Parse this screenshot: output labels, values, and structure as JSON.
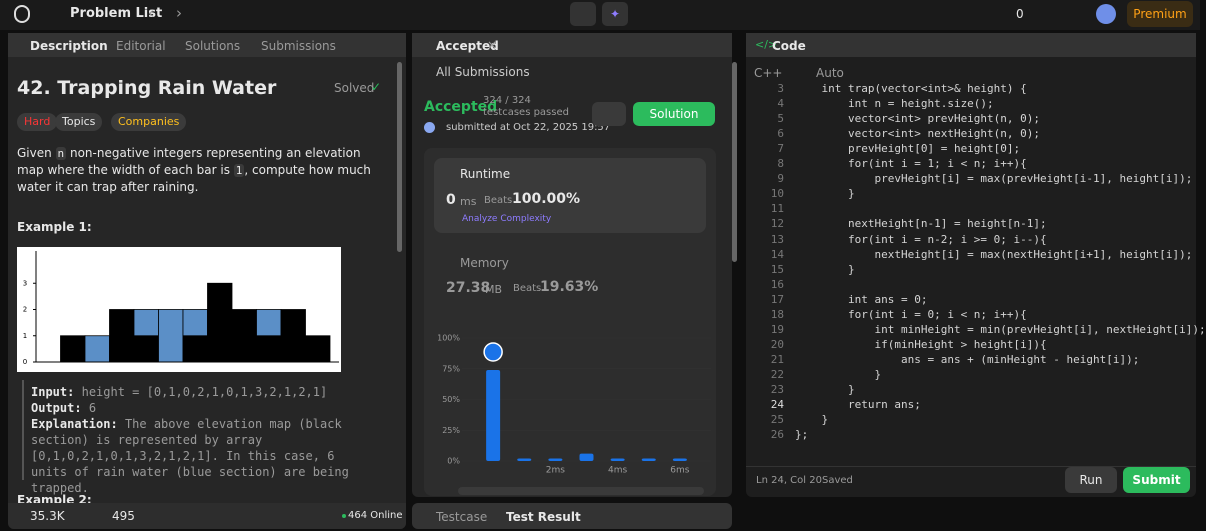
{
  "topbar": {
    "problem_list": "Problem List",
    "fire_count": "0",
    "premium": "Premium"
  },
  "description_panel": {
    "tabs": [
      "Description",
      "Editorial",
      "Solutions",
      "Submissions"
    ],
    "title": "42. Trapping Rain Water",
    "status": "Solved",
    "tags": [
      "Hard",
      "Topics",
      "Companies"
    ],
    "statement": [
      "Given ",
      "n",
      " non-negative integers representing an elevation map where the width of each bar is ",
      "1",
      ", compute how much water it can trap after raining."
    ],
    "example_heading": "Example 1:",
    "elevation_map": {
      "type": "bar",
      "heights": [
        0,
        1,
        0,
        2,
        1,
        0,
        1,
        3,
        2,
        1,
        2,
        1
      ],
      "water": [
        0,
        0,
        1,
        0,
        1,
        2,
        1,
        0,
        0,
        1,
        0,
        0
      ],
      "ylim": [
        0,
        4
      ],
      "yticks": [
        0,
        1,
        2,
        3
      ],
      "bar_color": "#000000",
      "water_color": "#5b8fc7"
    },
    "example": {
      "input_label": "Input:",
      "input": "height = [0,1,0,2,1,0,1,3,2,1,2,1]",
      "output_label": "Output:",
      "output": "6",
      "explanation_label": "Explanation:",
      "explanation": "The above elevation map (black section) is represented by array [0,1,0,2,1,0,1,3,2,1,2,1]. In this case, 6 units of rain water (blue section) are being trapped."
    },
    "next_example": "Example 2:",
    "footer": {
      "likes": "35.3K",
      "comments": "495",
      "online": "464 Online"
    }
  },
  "submission_panel": {
    "tab": "Accepted",
    "back": "All Submissions",
    "status": "Accepted",
    "testcases": "324 / 324 testcases passed",
    "submitted": "submitted at Oct 22, 2025 19:57",
    "solution_button": "Solution",
    "runtime": {
      "label": "Runtime",
      "value": "0",
      "unit": "ms",
      "beats_label": "Beats",
      "beats": "100.00%"
    },
    "analyze": "Analyze Complexity",
    "memory": {
      "label": "Memory",
      "value": "27.38",
      "unit": "MB",
      "beats_label": "Beats",
      "beats": "19.63%"
    },
    "distribution": {
      "type": "bar",
      "x": [
        0,
        1,
        2,
        3,
        4,
        5,
        6
      ],
      "values": [
        74,
        2,
        2,
        6,
        2,
        2,
        2
      ],
      "color": "#1a73e8",
      "xlim": [
        -1,
        7
      ],
      "xticks": [
        {
          "value": 2,
          "label": "2ms"
        },
        {
          "value": 4,
          "label": "4ms"
        },
        {
          "value": 6,
          "label": "6ms"
        }
      ],
      "ylim": [
        0,
        100
      ],
      "yticks": [
        {
          "value": 0,
          "label": "0%"
        },
        {
          "value": 25,
          "label": "25%"
        },
        {
          "value": 50,
          "label": "50%"
        },
        {
          "value": 75,
          "label": "75%"
        },
        {
          "value": 100,
          "label": "100%"
        }
      ]
    }
  },
  "bottom_tabs": [
    "Testcase",
    "Test Result"
  ],
  "code_panel": {
    "title": "Code",
    "language": "C++",
    "mode": "Auto",
    "lines": [
      {
        "no": 3,
        "code": "    int trap(vector<int>& height) {"
      },
      {
        "no": 4,
        "code": "        int n = height.size();"
      },
      {
        "no": 5,
        "code": "        vector<int> prevHeight(n, 0);"
      },
      {
        "no": 6,
        "code": "        vector<int> nextHeight(n, 0);"
      },
      {
        "no": 7,
        "code": "        prevHeight[0] = height[0];"
      },
      {
        "no": 8,
        "code": "        for(int i = 1; i < n; i++){"
      },
      {
        "no": 9,
        "code": "            prevHeight[i] = max(prevHeight[i-1], height[i]);"
      },
      {
        "no": 10,
        "code": "        }"
      },
      {
        "no": 11
      },
      {
        "no": 12,
        "code": "        nextHeight[n-1] = height[n-1];"
      },
      {
        "no": 13,
        "code": "        for(int i = n-2; i >= 0; i--){"
      },
      {
        "no": 14,
        "code": "            nextHeight[i] = max(nextHeight[i+1], height[i]);"
      },
      {
        "no": 15,
        "code": "        }"
      },
      {
        "no": 16
      },
      {
        "no": 17,
        "code": "        int ans = 0;"
      },
      {
        "no": 18,
        "code": "        for(int i = 0; i < n; i++){"
      },
      {
        "no": 19,
        "code": "            int minHeight = min(prevHeight[i], nextHeight[i]);"
      },
      {
        "no": 20,
        "code": "            if(minHeight > height[i]){"
      },
      {
        "no": 21,
        "code": "                ans = ans + (minHeight - height[i]);"
      },
      {
        "no": 22,
        "code": "            }"
      },
      {
        "no": 23,
        "code": "        }"
      },
      {
        "no": 24,
        "code": "        return ans;"
      },
      {
        "no": 25,
        "code": "    }"
      },
      {
        "no": 26,
        "code": "};"
      }
    ],
    "cursor": "Ln 24, Col 20",
    "saved": "Saved",
    "run": "Run",
    "submit": "Submit"
  }
}
